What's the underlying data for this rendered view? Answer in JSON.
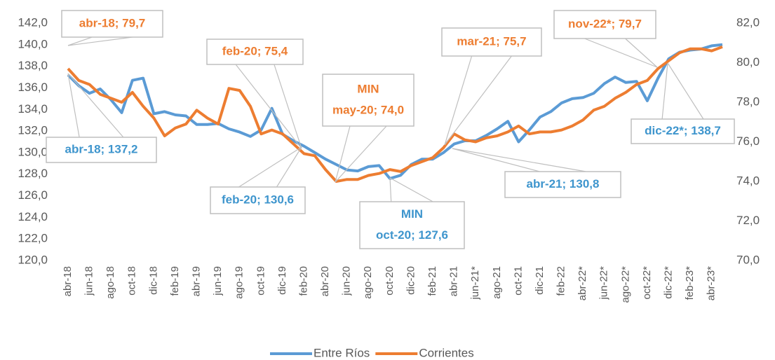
{
  "chart_data": {
    "type": "line",
    "categories": [
      "abr-18",
      null,
      "jun-18",
      null,
      "ago-18",
      null,
      "oct-18",
      null,
      "dic-18",
      null,
      "feb-19",
      null,
      "abr-19",
      null,
      "jun-19",
      null,
      "ago-19",
      null,
      "oct-19",
      null,
      "dic-19",
      null,
      "feb-20",
      null,
      "abr-20",
      null,
      "jun-20",
      null,
      "ago-20",
      null,
      "oct-20",
      null,
      "dic-20",
      null,
      "feb-21",
      null,
      "abr-21",
      null,
      "jun-21*",
      null,
      "ago-21",
      null,
      "oct-21",
      null,
      "dic-21",
      null,
      "feb-22",
      null,
      "abr-22*",
      null,
      "jun-22*",
      null,
      "ago-22*",
      null,
      "oct-22*",
      null,
      "dic-22*",
      null,
      "feb-23*",
      null,
      "abr-23*",
      null
    ],
    "series": [
      {
        "name": "Entre Ríos",
        "color": "#5B9BD5",
        "values": [
          137.2,
          136.2,
          135.5,
          135.9,
          134.9,
          133.7,
          136.7,
          136.9,
          133.6,
          133.8,
          133.5,
          133.4,
          132.6,
          132.6,
          132.7,
          132.2,
          131.9,
          131.5,
          132.1,
          134.1,
          131.7,
          131.1,
          130.6,
          130.0,
          129.4,
          128.9,
          128.4,
          128.3,
          128.7,
          128.8,
          127.6,
          127.9,
          128.9,
          129.4,
          129.4,
          130.0,
          130.8,
          131.1,
          131.1,
          131.6,
          132.2,
          132.9,
          131.0,
          132.1,
          133.3,
          133.8,
          134.6,
          135.0,
          135.1,
          135.5,
          136.4,
          137.0,
          136.5,
          136.6,
          134.8,
          136.9,
          138.7,
          139.3,
          139.5,
          139.6,
          139.9,
          140.0
        ]
      },
      {
        "name": "Corrientes",
        "color": "#ED7D31",
        "axis": "y2",
        "values": [
          79.7,
          79.1,
          78.9,
          78.4,
          78.2,
          78.0,
          78.5,
          77.8,
          77.2,
          76.3,
          76.7,
          76.9,
          77.6,
          77.2,
          76.9,
          78.7,
          78.6,
          77.8,
          76.4,
          76.6,
          76.4,
          75.9,
          75.4,
          75.3,
          74.6,
          74.0,
          74.1,
          74.1,
          74.3,
          74.4,
          74.6,
          74.5,
          74.8,
          75.0,
          75.2,
          75.7,
          76.4,
          76.1,
          76.0,
          76.2,
          76.3,
          76.5,
          76.8,
          76.4,
          76.5,
          76.5,
          76.6,
          76.8,
          77.1,
          77.6,
          77.8,
          78.2,
          78.5,
          78.9,
          79.1,
          79.7,
          80.1,
          80.5,
          80.7,
          80.7,
          80.6,
          80.8
        ]
      }
    ],
    "ylim": [
      120,
      142
    ],
    "yticks": [
      {
        "value": 120,
        "label": "120,0"
      },
      {
        "value": 122,
        "label": "122,0"
      },
      {
        "value": 124,
        "label": "124,0"
      },
      {
        "value": 126,
        "label": "126,0"
      },
      {
        "value": 128,
        "label": "128,0"
      },
      {
        "value": 130,
        "label": "130,0"
      },
      {
        "value": 132,
        "label": "132,0"
      },
      {
        "value": 134,
        "label": "134,0"
      },
      {
        "value": 136,
        "label": "136,0"
      },
      {
        "value": 138,
        "label": "138,0"
      },
      {
        "value": 140,
        "label": "140,0"
      },
      {
        "value": 142,
        "label": "142,0"
      }
    ],
    "y2lim": [
      70,
      82
    ],
    "y2ticks": [
      {
        "value": 70,
        "label": "70,0"
      },
      {
        "value": 72,
        "label": "72,0"
      },
      {
        "value": 74,
        "label": "74,0"
      },
      {
        "value": 76,
        "label": "76,0"
      },
      {
        "value": 78,
        "label": "78,0"
      },
      {
        "value": 80,
        "label": "80,0"
      },
      {
        "value": 82,
        "label": "82,0"
      }
    ],
    "legend": "bottom",
    "annotations": [
      {
        "text": [
          "abr-18; 79,7"
        ],
        "color": "#ED7D31"
      },
      {
        "text": [
          "abr-18; 137,2"
        ],
        "color": "#3E95CD"
      },
      {
        "text": [
          "feb-20; 75,4"
        ],
        "color": "#ED7D31"
      },
      {
        "text": [
          "MIN",
          "may-20; 74,0"
        ],
        "color": "#ED7D31"
      },
      {
        "text": [
          "feb-20; 130,6"
        ],
        "color": "#3E95CD"
      },
      {
        "text": [
          "MIN",
          "oct-20; 127,6"
        ],
        "color": "#3E95CD"
      },
      {
        "text": [
          "mar-21; 75,7"
        ],
        "color": "#ED7D31"
      },
      {
        "text": [
          "abr-21; 130,8"
        ],
        "color": "#3E95CD"
      },
      {
        "text": [
          "nov-22*; 79,7"
        ],
        "color": "#ED7D31"
      },
      {
        "text": [
          "dic-22*; 138,7"
        ],
        "color": "#3E95CD"
      }
    ]
  }
}
